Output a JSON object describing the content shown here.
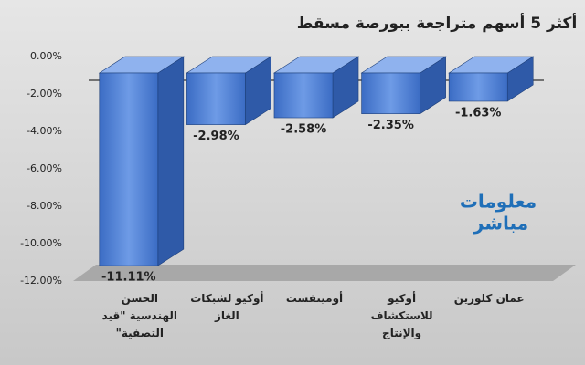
{
  "chart_data": {
    "type": "bar3d",
    "title": "أكثر 5 أسهم متراجعة ببورصة مسقط",
    "categories": [
      "الحسن الهندسية \"قيد التصفية\"",
      "أوكيو لشبكات الغاز",
      "أومينفست",
      "أوكيو للاستكشاف والإنتاج",
      "عمان كلورين"
    ],
    "values": [
      -11.11,
      -2.98,
      -2.58,
      -2.35,
      -1.63
    ],
    "value_labels": [
      "-11.11%",
      "-2.98%",
      "-2.58%",
      "-2.35%",
      "-1.63%"
    ],
    "color": "#4f7fd4",
    "ylim": [
      -12,
      0
    ],
    "yticks": [
      {
        "value": 0,
        "label": "0.00%"
      },
      {
        "value": -2,
        "label": "-2.00%"
      },
      {
        "value": -4,
        "label": "-4.00%"
      },
      {
        "value": -6,
        "label": "-6.00%"
      },
      {
        "value": -8,
        "label": "-8.00%"
      },
      {
        "value": -10,
        "label": "-10.00%"
      },
      {
        "value": -12,
        "label": "-12.00%"
      }
    ],
    "logo": [
      "معلومات",
      "مباشر"
    ]
  }
}
